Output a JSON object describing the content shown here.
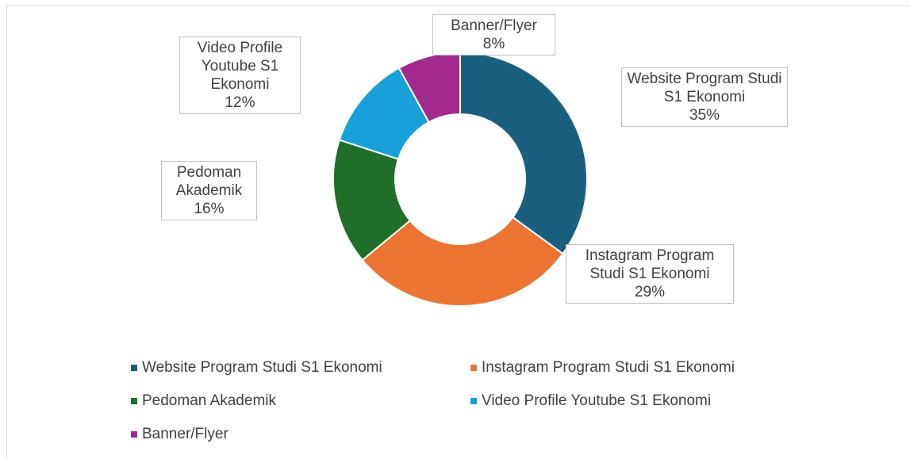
{
  "chart_data": {
    "type": "donut",
    "categories": [
      "Website Program Studi S1 Ekonomi",
      "Instagram Program Studi S1 Ekonomi",
      "Pedoman Akademik",
      "Video Profile Youtube S1 Ekonomi",
      "Banner/Flyer"
    ],
    "values": [
      35,
      29,
      16,
      12,
      8
    ],
    "value_labels": [
      "35%",
      "29%",
      "16%",
      "12%",
      "8%"
    ],
    "colors": [
      "#1b5f80",
      "#ec7433",
      "#1f6e29",
      "#18a0d8",
      "#a22a8f"
    ],
    "legend": "bottom"
  }
}
